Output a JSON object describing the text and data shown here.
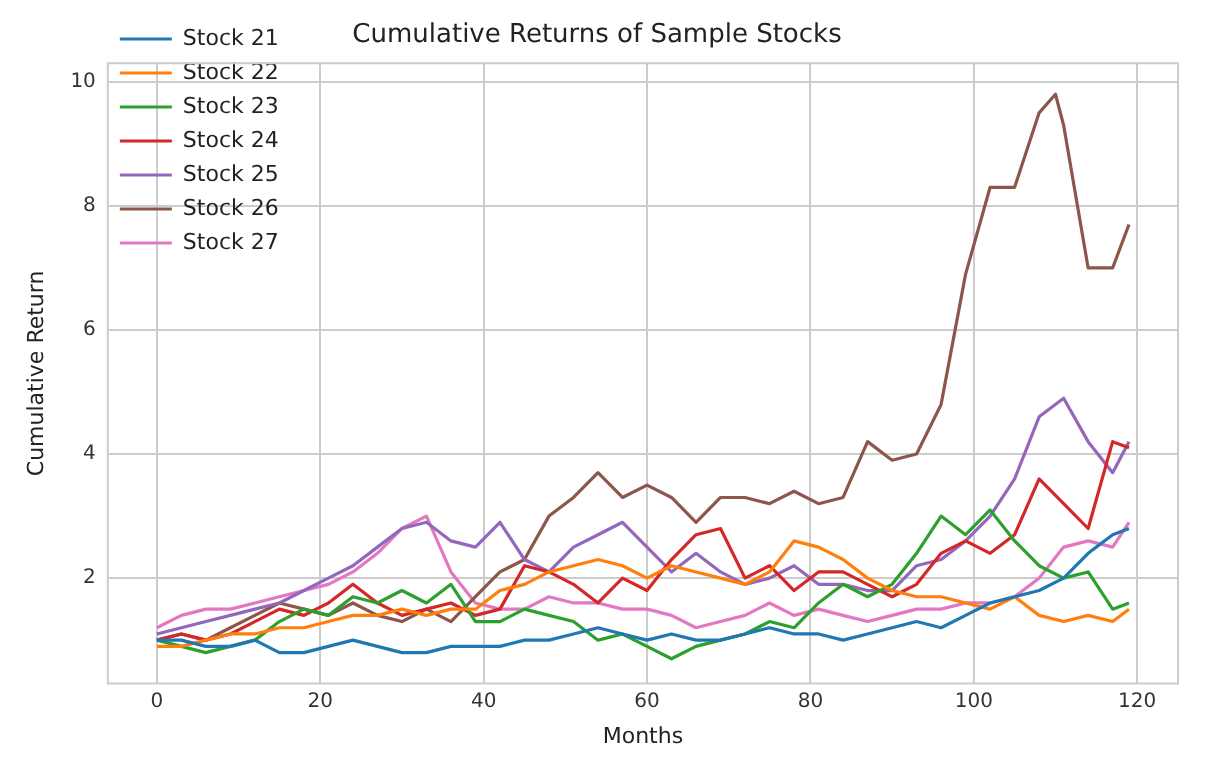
{
  "chart_data": {
    "type": "line",
    "title": "Cumulative Returns of Sample Stocks",
    "xlabel": "Months",
    "ylabel": "Cumulative Return",
    "x": [
      0,
      3,
      6,
      9,
      12,
      15,
      18,
      21,
      24,
      27,
      30,
      33,
      36,
      39,
      42,
      45,
      48,
      51,
      54,
      57,
      60,
      63,
      66,
      69,
      72,
      75,
      78,
      81,
      84,
      87,
      90,
      93,
      96,
      99,
      102,
      105,
      108,
      111,
      114,
      117,
      119
    ],
    "series": [
      {
        "name": "Stock 21",
        "color": "#1f77b4",
        "values": [
          1.0,
          1.0,
          0.9,
          0.9,
          1.0,
          0.8,
          0.8,
          0.9,
          1.0,
          0.9,
          0.8,
          0.8,
          0.9,
          0.9,
          0.9,
          1.0,
          1.0,
          1.1,
          1.2,
          1.1,
          1.0,
          1.1,
          1.0,
          1.0,
          1.1,
          1.2,
          1.1,
          1.1,
          1.0,
          1.1,
          1.2,
          1.3,
          1.2,
          1.4,
          1.6,
          1.7,
          1.8,
          2.0,
          2.4,
          2.7,
          2.8
        ]
      },
      {
        "name": "Stock 22",
        "color": "#ff7f0e",
        "values": [
          0.9,
          0.9,
          1.0,
          1.1,
          1.1,
          1.2,
          1.2,
          1.3,
          1.4,
          1.4,
          1.5,
          1.4,
          1.5,
          1.5,
          1.8,
          1.9,
          2.1,
          2.2,
          2.3,
          2.2,
          2.0,
          2.2,
          2.1,
          2.0,
          1.9,
          2.1,
          2.6,
          2.5,
          2.3,
          2.0,
          1.8,
          1.7,
          1.7,
          1.6,
          1.5,
          1.7,
          1.4,
          1.3,
          1.4,
          1.3,
          1.5
        ]
      },
      {
        "name": "Stock 23",
        "color": "#2ca02c",
        "values": [
          1.0,
          0.9,
          0.8,
          0.9,
          1.0,
          1.3,
          1.5,
          1.4,
          1.7,
          1.6,
          1.8,
          1.6,
          1.9,
          1.3,
          1.3,
          1.5,
          1.4,
          1.3,
          1.0,
          1.1,
          0.9,
          0.7,
          0.9,
          1.0,
          1.1,
          1.3,
          1.2,
          1.6,
          1.9,
          1.7,
          1.9,
          2.4,
          3.0,
          2.7,
          3.1,
          2.6,
          2.2,
          2.0,
          2.1,
          1.5,
          1.6
        ]
      },
      {
        "name": "Stock 24",
        "color": "#d62728",
        "values": [
          1.0,
          1.1,
          1.0,
          1.1,
          1.3,
          1.5,
          1.4,
          1.6,
          1.9,
          1.6,
          1.4,
          1.5,
          1.6,
          1.4,
          1.5,
          2.2,
          2.1,
          1.9,
          1.6,
          2.0,
          1.8,
          2.3,
          2.7,
          2.8,
          2.0,
          2.2,
          1.8,
          2.1,
          2.1,
          1.9,
          1.7,
          1.9,
          2.4,
          2.6,
          2.4,
          2.7,
          3.6,
          3.2,
          2.8,
          4.2,
          4.1
        ]
      },
      {
        "name": "Stock 25",
        "color": "#9467bd",
        "values": [
          1.1,
          1.2,
          1.3,
          1.4,
          1.5,
          1.6,
          1.8,
          2.0,
          2.2,
          2.5,
          2.8,
          2.9,
          2.6,
          2.5,
          2.9,
          2.3,
          2.1,
          2.5,
          2.7,
          2.9,
          2.5,
          2.1,
          2.4,
          2.1,
          1.9,
          2.0,
          2.2,
          1.9,
          1.9,
          1.8,
          1.8,
          2.2,
          2.3,
          2.6,
          3.0,
          3.6,
          4.6,
          4.9,
          4.2,
          3.7,
          4.2
        ]
      },
      {
        "name": "Stock 26",
        "color": "#8c564b",
        "x": [
          0,
          3,
          6,
          9,
          12,
          15,
          18,
          21,
          24,
          27,
          30,
          33,
          36,
          39,
          42,
          45,
          48,
          51,
          54,
          57,
          60,
          63,
          66,
          69,
          72,
          75,
          78,
          81,
          84,
          87,
          90,
          93,
          96,
          99,
          102,
          105,
          108,
          110,
          111,
          114,
          117,
          119
        ],
        "values": [
          1.0,
          1.1,
          1.0,
          1.2,
          1.4,
          1.6,
          1.5,
          1.4,
          1.6,
          1.4,
          1.3,
          1.5,
          1.3,
          1.7,
          2.1,
          2.3,
          3.0,
          3.3,
          3.7,
          3.3,
          3.5,
          3.3,
          2.9,
          3.3,
          3.3,
          3.2,
          3.4,
          3.2,
          3.3,
          4.2,
          3.9,
          4.0,
          4.8,
          6.9,
          8.3,
          8.3,
          9.5,
          9.8,
          9.3,
          7.0,
          7.0,
          7.7
        ]
      },
      {
        "name": "Stock 27",
        "color": "#e377c2",
        "values": [
          1.2,
          1.4,
          1.5,
          1.5,
          1.6,
          1.7,
          1.8,
          1.9,
          2.1,
          2.4,
          2.8,
          3.0,
          2.1,
          1.6,
          1.5,
          1.5,
          1.7,
          1.6,
          1.6,
          1.5,
          1.5,
          1.4,
          1.2,
          1.3,
          1.4,
          1.6,
          1.4,
          1.5,
          1.4,
          1.3,
          1.4,
          1.5,
          1.5,
          1.6,
          1.6,
          1.7,
          2.0,
          2.5,
          2.6,
          2.5,
          2.9
        ]
      }
    ],
    "xlim": [
      -6,
      125
    ],
    "xticks": [
      0,
      20,
      40,
      60,
      80,
      100,
      120
    ],
    "ylim": [
      0.3,
      10.3
    ],
    "yticks": [
      2,
      4,
      6,
      8,
      10
    ],
    "grid": true,
    "legend": "top left",
    "marker": "none"
  }
}
